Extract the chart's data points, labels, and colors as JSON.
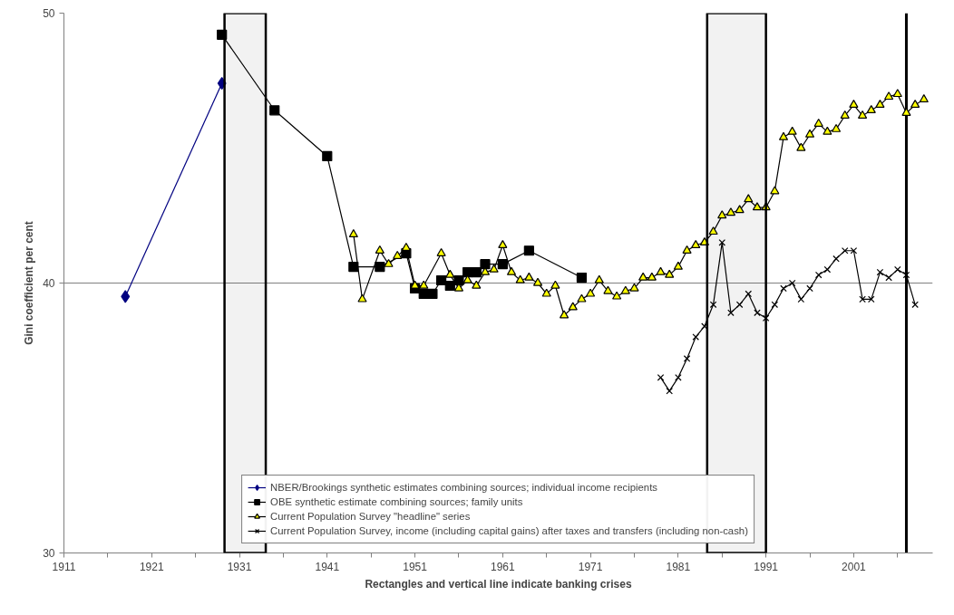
{
  "chart_data": {
    "type": "line",
    "xlabel": "Rectangles and vertical line indicate banking crises",
    "ylabel": "Gini coefficient per cent",
    "xlim": [
      1911,
      2010
    ],
    "ylim": [
      30,
      50
    ],
    "yticks": [
      30,
      40,
      50
    ],
    "xticks": [
      1911,
      {
        "value": 1916,
        "label": null
      },
      1921,
      {
        "value": 1926,
        "label": null
      },
      1931,
      {
        "value": 1936,
        "label": null
      },
      1941,
      {
        "value": 1946,
        "label": null
      },
      1951,
      {
        "value": 1956,
        "label": null
      },
      1961,
      {
        "value": 1966,
        "label": null
      },
      1971,
      {
        "value": 1976,
        "label": null
      },
      1981,
      {
        "value": 1986,
        "label": null
      },
      1991,
      {
        "value": 1996,
        "label": null
      },
      2001,
      {
        "value": 2006,
        "label": null
      }
    ],
    "grid": "y",
    "legend": "bottom",
    "series": [
      {
        "name": "NBER/Brookings synthetic estimates combining sources; individual income recipients",
        "color": "#000080",
        "marker": "diamond",
        "x": [
          1918,
          1929
        ],
        "values": [
          39.5,
          47.4
        ]
      },
      {
        "name": "OBE synthetic estimate combining sources; family units",
        "color": "#000000",
        "marker": "square",
        "x": [
          1929,
          1935,
          1941,
          1944,
          1947,
          1950,
          1951,
          1952,
          1953,
          1954,
          1955,
          1956,
          1957,
          1958,
          1959,
          1961,
          1964,
          1970
        ],
        "values": [
          49.2,
          46.4,
          44.7,
          40.6,
          40.6,
          41.1,
          39.8,
          39.6,
          39.6,
          40.1,
          39.9,
          40.1,
          40.4,
          40.4,
          40.7,
          40.7,
          41.2,
          40.2
        ]
      },
      {
        "name": "Current Population Survey \"headline\" series",
        "color": "#ffff00",
        "marker": "triangle",
        "x": [
          1944,
          1945,
          1947,
          1948,
          1949,
          1950,
          1951,
          1952,
          1954,
          1955,
          1956,
          1957,
          1958,
          1959,
          1960,
          1961,
          1962,
          1963,
          1964,
          1965,
          1966,
          1967,
          1968,
          1969,
          1970,
          1971,
          1972,
          1973,
          1974,
          1975,
          1976,
          1977,
          1978,
          1979,
          1980,
          1981,
          1982,
          1983,
          1984,
          1985,
          1986,
          1987,
          1988,
          1989,
          1990,
          1991,
          1992,
          1993,
          1994,
          1995,
          1996,
          1997,
          1998,
          1999,
          2000,
          2001,
          2002,
          2003,
          2004,
          2005,
          2006,
          2007,
          2008,
          2009
        ],
        "values": [
          41.8,
          39.4,
          41.2,
          40.7,
          41.0,
          41.3,
          39.9,
          39.9,
          41.1,
          40.3,
          39.8,
          40.1,
          39.9,
          40.4,
          40.5,
          41.4,
          40.4,
          40.1,
          40.2,
          40.0,
          39.6,
          39.9,
          38.8,
          39.1,
          39.4,
          39.6,
          40.1,
          39.7,
          39.5,
          39.7,
          39.8,
          40.2,
          40.2,
          40.4,
          40.3,
          40.6,
          41.2,
          41.4,
          41.5,
          41.9,
          42.5,
          42.6,
          42.7,
          43.1,
          42.8,
          42.8,
          43.4,
          45.4,
          45.6,
          45.0,
          45.5,
          45.9,
          45.6,
          45.7,
          46.2,
          46.6,
          46.2,
          46.4,
          46.6,
          46.9,
          47.0,
          46.3,
          46.6,
          46.8
        ]
      },
      {
        "name": "Current Population Survey, income (including capital gains) after taxes and transfers (including non-cash)",
        "color": "#000000",
        "marker": "cross",
        "x": [
          1979,
          1980,
          1981,
          1982,
          1983,
          1984,
          1985,
          1986,
          1987,
          1988,
          1989,
          1990,
          1991,
          1992,
          1993,
          1994,
          1995,
          1996,
          1997,
          1998,
          1999,
          2000,
          2001,
          2002,
          2003,
          2004,
          2005,
          2006,
          2007,
          2008
        ],
        "values": [
          36.5,
          36.0,
          36.5,
          37.2,
          38.0,
          38.4,
          39.2,
          41.5,
          38.9,
          39.2,
          39.6,
          38.9,
          38.7,
          39.2,
          39.8,
          40.0,
          39.4,
          39.8,
          40.3,
          40.5,
          40.9,
          41.2,
          41.2,
          39.4,
          39.4,
          40.4,
          40.2,
          40.5,
          40.3,
          39.2
        ]
      }
    ],
    "bands": [
      {
        "axis": "x",
        "from": 1929.3,
        "to": 1934.0,
        "label": null,
        "color": "#000000"
      },
      {
        "axis": "x",
        "from": 1984.3,
        "to": 1991.0,
        "label": null,
        "color": "#000000"
      }
    ],
    "ref_lines": [
      {
        "axis": "x",
        "value": 2007,
        "label": null,
        "color": "#000000"
      }
    ]
  }
}
